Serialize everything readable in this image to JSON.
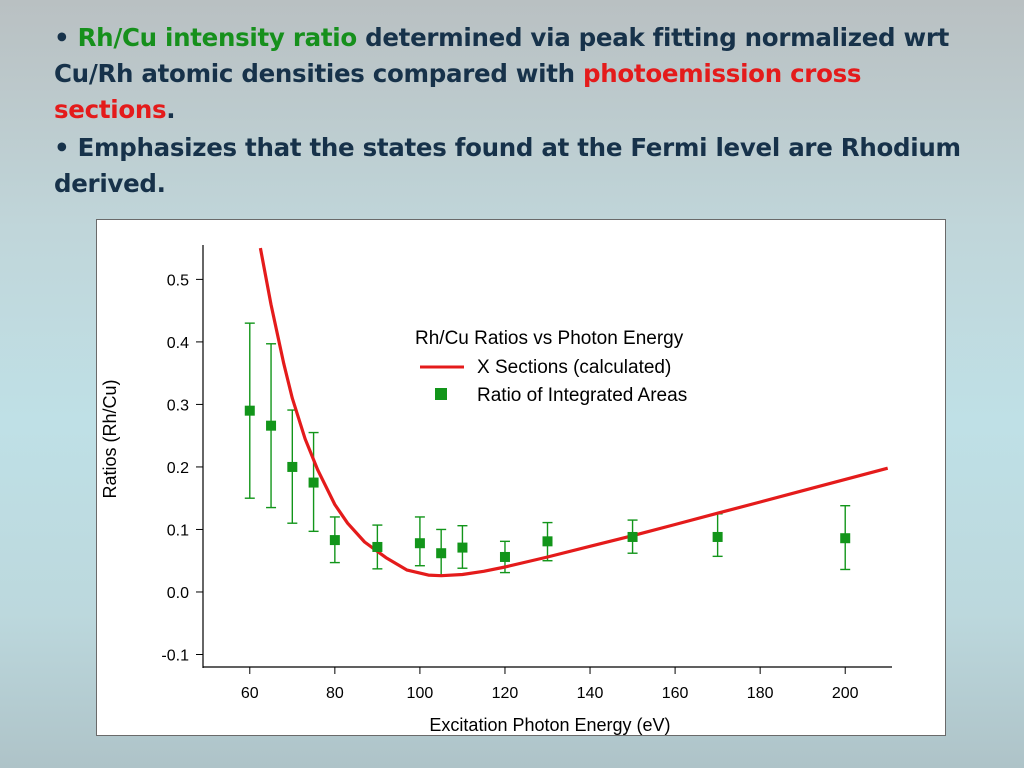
{
  "slide": {
    "bullet1": {
      "marker": "•",
      "green_text": "Rh/Cu intensity ratio",
      "text_a": " determined via peak fitting normalized wrt Cu/Rh atomic densities compared with ",
      "red_text": "photoemission cross sections",
      "text_b": "."
    },
    "bullet2": {
      "marker": "•",
      "text": "Emphasizes that the states found at the Fermi level are Rhodium derived."
    }
  },
  "colors": {
    "curve": "#e41b1b",
    "points": "#12951a",
    "title_text": "#17324a",
    "highlight_green": "#16901c",
    "highlight_red": "#e41b1b"
  },
  "chart_data": {
    "type": "scatter",
    "title": "Rh/Cu Ratios vs Photon Energy",
    "xlabel": "Excitation Photon Energy (eV)",
    "ylabel": "Ratios (Rh/Cu)",
    "xlim": [
      49,
      211
    ],
    "ylim": [
      -0.12,
      0.555
    ],
    "xticks": [
      "60",
      "80",
      "100",
      "120",
      "140",
      "160",
      "180",
      "200"
    ],
    "yticks": [
      "-0.1",
      "0.0",
      "0.1",
      "0.2",
      "0.3",
      "0.4",
      "0.5"
    ],
    "grid": false,
    "legend_position": "upper-right",
    "series": [
      {
        "name": "X Sections (calculated)",
        "kind": "line",
        "x": [
          62.5,
          65,
          68,
          70,
          73,
          76,
          80,
          83,
          87,
          92,
          97,
          102,
          105,
          110,
          115,
          120,
          125,
          130,
          140,
          150,
          160,
          170,
          180,
          190,
          200,
          210
        ],
        "y": [
          0.55,
          0.46,
          0.365,
          0.31,
          0.245,
          0.195,
          0.14,
          0.11,
          0.08,
          0.055,
          0.035,
          0.027,
          0.026,
          0.028,
          0.033,
          0.04,
          0.048,
          0.056,
          0.073,
          0.09,
          0.108,
          0.126,
          0.144,
          0.162,
          0.18,
          0.198
        ]
      },
      {
        "name": "Ratio of Integrated Areas",
        "kind": "points",
        "x": [
          60,
          65,
          70,
          75,
          80,
          90,
          100,
          105,
          110,
          120,
          130,
          150,
          170,
          200
        ],
        "y": [
          0.29,
          0.266,
          0.2,
          0.175,
          0.083,
          0.072,
          0.078,
          0.062,
          0.071,
          0.056,
          0.081,
          0.088,
          0.088,
          0.086
        ],
        "err_low": [
          0.15,
          0.135,
          0.11,
          0.097,
          0.047,
          0.037,
          0.042,
          0.027,
          0.038,
          0.031,
          0.05,
          0.062,
          0.057,
          0.036
        ],
        "err_high": [
          0.43,
          0.397,
          0.291,
          0.255,
          0.12,
          0.107,
          0.12,
          0.1,
          0.106,
          0.081,
          0.111,
          0.115,
          0.125,
          0.138
        ]
      }
    ]
  }
}
